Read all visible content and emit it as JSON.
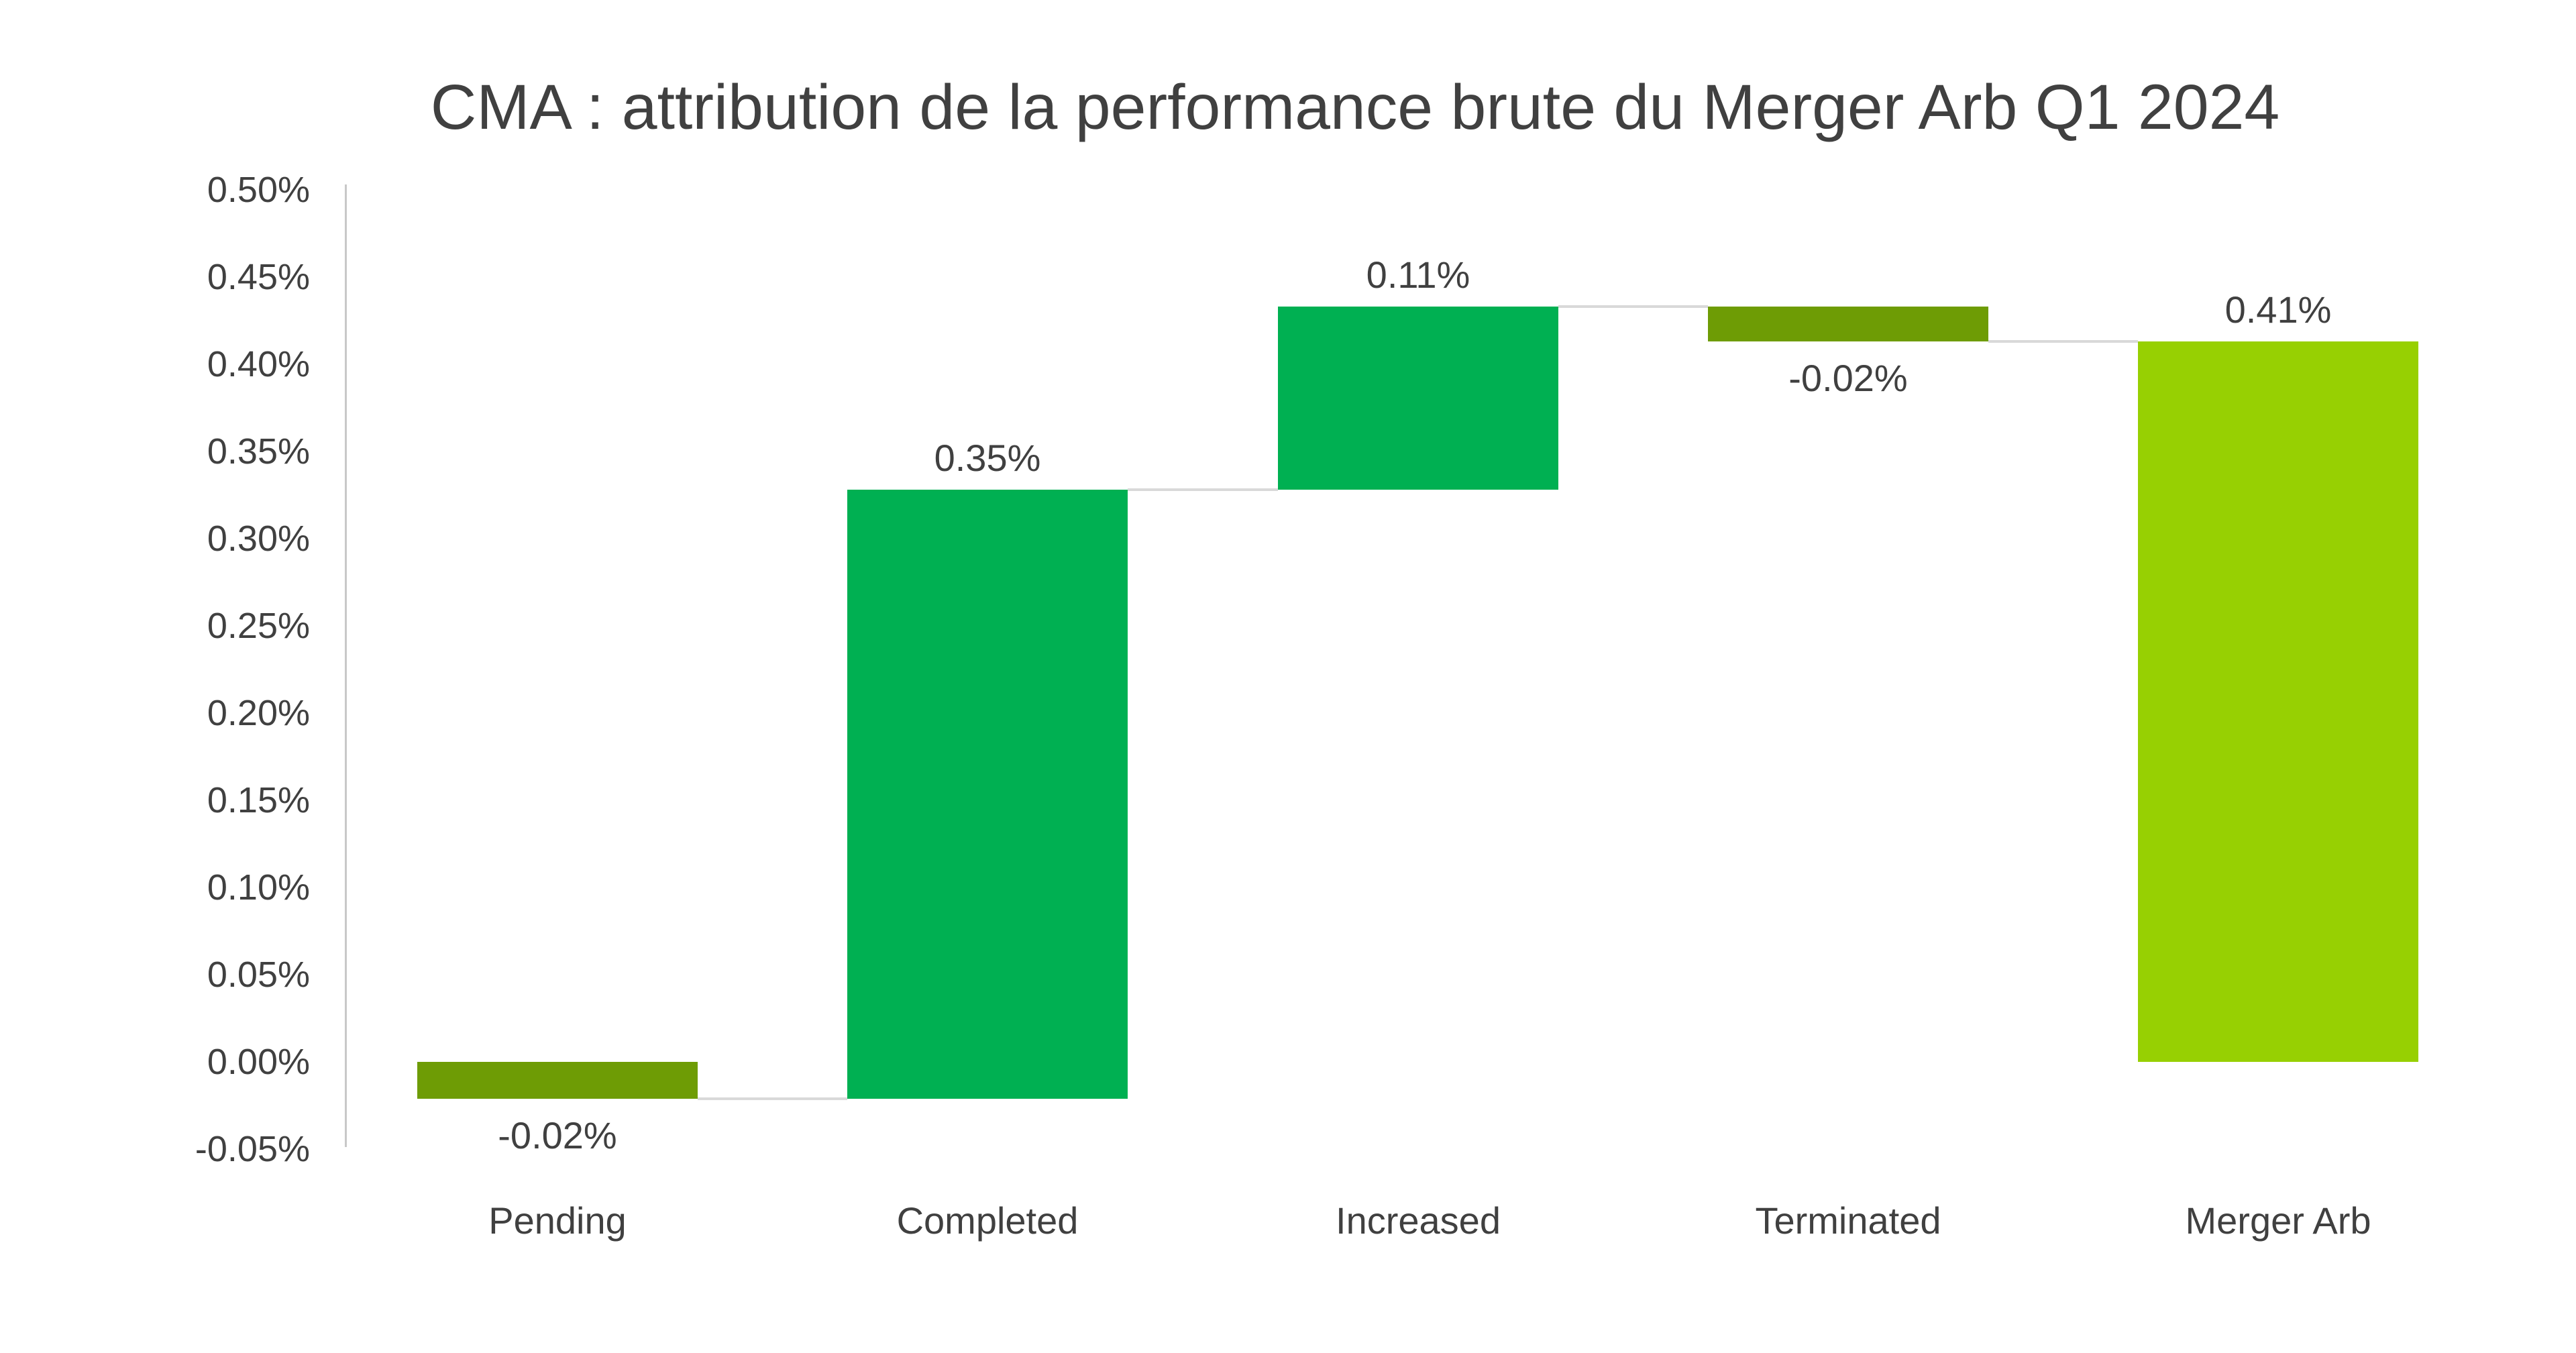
{
  "title": "CMA : attribution de la performance brute du Merger Arb Q1 2024",
  "chart_data": {
    "type": "bar",
    "subtype": "waterfall",
    "title": "CMA : attribution de la performance brute du Merger Arb Q1 2024",
    "categories": [
      "Pending",
      "Completed",
      "Increased",
      "Terminated",
      "Merger Arb"
    ],
    "values": [
      -0.02,
      0.35,
      0.11,
      -0.02,
      0.41
    ],
    "value_labels": [
      "-0.02%",
      "0.35%",
      "0.11%",
      "-0.02%",
      "0.41%"
    ],
    "bars": [
      {
        "category": "Pending",
        "label": "-0.02%",
        "start": 0,
        "end": -0.021,
        "role": "decrease",
        "color": "#6E9C05",
        "label_side": "below"
      },
      {
        "category": "Completed",
        "label": "0.35%",
        "start": -0.021,
        "end": 0.328,
        "role": "increase",
        "color": "#00B052",
        "label_side": "above"
      },
      {
        "category": "Increased",
        "label": "0.11%",
        "start": 0.328,
        "end": 0.433,
        "role": "increase",
        "color": "#00B052",
        "label_side": "above"
      },
      {
        "category": "Terminated",
        "label": "-0.02%",
        "start": 0.433,
        "end": 0.413,
        "role": "decrease",
        "color": "#6E9C05",
        "label_side": "below"
      },
      {
        "category": "Merger Arb",
        "label": "0.41%",
        "start": 0,
        "end": 0.413,
        "role": "total",
        "color": "#97D002",
        "label_side": "above"
      }
    ],
    "y_axis": {
      "tick_labels": [
        "0.50%",
        "0.45%",
        "0.40%",
        "0.35%",
        "0.30%",
        "0.25%",
        "0.20%",
        "0.15%",
        "0.10%",
        "0.05%",
        "0.00%",
        "-0.05%"
      ],
      "max": 0.5,
      "min": -0.05,
      "step": 0.05,
      "unit": "%"
    },
    "xlabel": "",
    "ylabel": "",
    "legend": "none",
    "grid": "off",
    "colors": {
      "increase": "#00B052",
      "decrease": "#6E9C05",
      "total": "#97D002",
      "connector": "#D9D9D9",
      "axis_line": "#C8C8C8",
      "text": "#404040",
      "background": "#FFFFFF"
    }
  }
}
